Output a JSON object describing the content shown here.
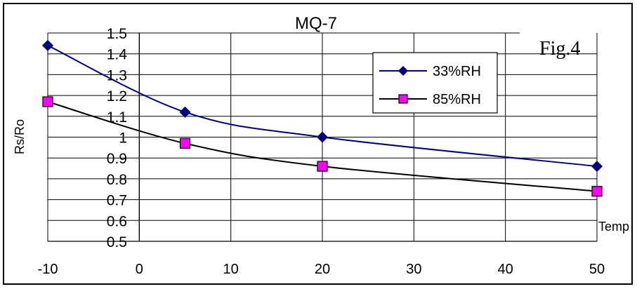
{
  "chart_data": {
    "type": "line",
    "title": "MQ-7",
    "annotation": "Fig.4",
    "xlabel": "Temp",
    "ylabel": "Rs/Ro",
    "xlim": [
      -10,
      50
    ],
    "ylim": [
      0.5,
      1.5
    ],
    "x_ticks": [
      "-10",
      "0",
      "10",
      "20",
      "30",
      "40",
      "50"
    ],
    "y_ticks": [
      "0.5",
      "0.6",
      "0.7",
      "0.8",
      "0.9",
      "1",
      "1.1",
      "1.2",
      "1.3",
      "1.4",
      "1.5"
    ],
    "grid": true,
    "legend_position": "top-right",
    "series": [
      {
        "name": "33%RH",
        "color": "#000080",
        "marker": "diamond",
        "marker_color": "#000080",
        "x": [
          -10,
          5,
          20,
          50
        ],
        "y": [
          1.44,
          1.12,
          1.0,
          0.86
        ]
      },
      {
        "name": "85%RH",
        "color": "#000000",
        "marker": "square",
        "marker_color": "#ff00ff",
        "x": [
          -10,
          5,
          20,
          50
        ],
        "y": [
          1.17,
          0.97,
          0.86,
          0.74
        ]
      }
    ]
  }
}
